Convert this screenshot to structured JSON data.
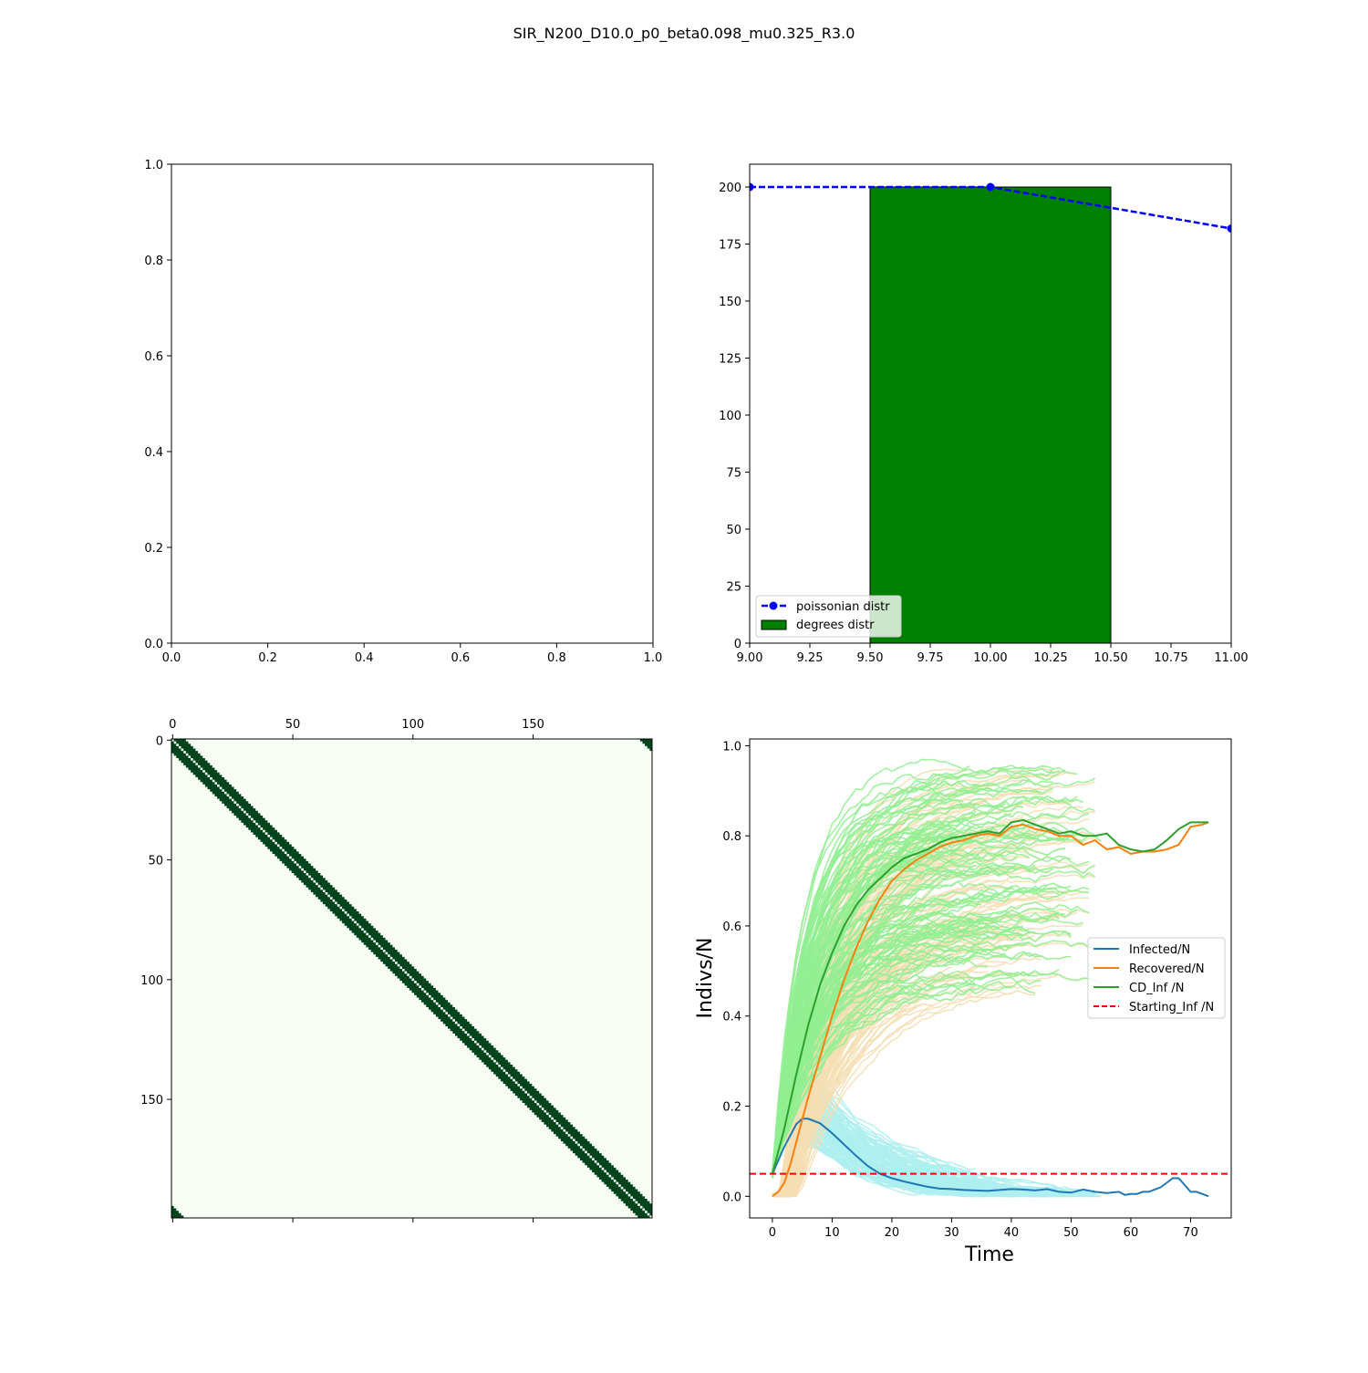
{
  "figure": {
    "title": "SIR_N200_D10.0_p0_beta0.098_mu0.325_R3.0"
  },
  "chart_data": [
    {
      "id": "empty-axes",
      "type": "scatter",
      "title": "",
      "xlabel": "",
      "ylabel": "",
      "xlim": [
        0,
        1
      ],
      "ylim": [
        0,
        1
      ],
      "xticks": [
        "0.0",
        "0.2",
        "0.4",
        "0.6",
        "0.8",
        "1.0"
      ],
      "yticks": [
        "0.0",
        "0.2",
        "0.4",
        "0.6",
        "0.8",
        "1.0"
      ],
      "series": []
    },
    {
      "id": "degree-distribution",
      "type": "bar",
      "title": "",
      "xlabel": "",
      "ylabel": "",
      "xlim": [
        9.0,
        11.0
      ],
      "ylim": [
        0,
        210
      ],
      "xticks": [
        "9.00",
        "9.25",
        "9.50",
        "9.75",
        "10.00",
        "10.25",
        "10.50",
        "10.75",
        "11.00"
      ],
      "yticks": [
        "0",
        "25",
        "50",
        "75",
        "100",
        "125",
        "150",
        "175",
        "200"
      ],
      "bars": [
        {
          "x0": 9.5,
          "x1": 10.5,
          "value": 200,
          "color": "#008000"
        }
      ],
      "line": {
        "name": "poissonian distr",
        "color": "#0000ff",
        "style": "dashed-with-markers",
        "x": [
          9,
          10,
          11
        ],
        "y": [
          200,
          200,
          181.8
        ]
      },
      "legend": {
        "position": "lower-left",
        "entries": [
          {
            "label": "poissonian distr",
            "kind": "line",
            "color": "#0000ff"
          },
          {
            "label": "degrees distr",
            "kind": "patch",
            "color": "#008000"
          }
        ]
      }
    },
    {
      "id": "adjacency-matrix",
      "type": "heatmap",
      "title": "",
      "n": 200,
      "band_offsets": [
        1,
        2,
        3,
        4,
        5
      ],
      "periodic": true,
      "colors": {
        "off": "#f7fcf5",
        "on": "#00441b"
      },
      "xticks": [
        "0",
        "50",
        "100",
        "150"
      ],
      "yticks": [
        "0",
        "50",
        "100",
        "150"
      ],
      "tick_values": [
        0,
        50,
        100,
        150
      ]
    },
    {
      "id": "sir-time-series",
      "type": "line",
      "title": "",
      "xlabel": "Time",
      "ylabel": "Indivs/N",
      "xlim": [
        -3.8,
        76.8
      ],
      "ylim": [
        -0.048,
        1.015
      ],
      "xticks": [
        "0",
        "10",
        "20",
        "30",
        "40",
        "50",
        "60",
        "70"
      ],
      "yticks": [
        "0.0",
        "0.2",
        "0.4",
        "0.6",
        "0.8",
        "1.0"
      ],
      "starting_inf": 0.05,
      "series": [
        {
          "name": "Infected/N",
          "color": "#1f77b4",
          "x": [
            0,
            2,
            4,
            5,
            6,
            8,
            10,
            12,
            14,
            16,
            18,
            20,
            22,
            24,
            26,
            28,
            30,
            32,
            34,
            36,
            38,
            40,
            42,
            44,
            46,
            48,
            50,
            52,
            54,
            56,
            58,
            59,
            60,
            61,
            62,
            63,
            64,
            65,
            66,
            67,
            68,
            69,
            70,
            71,
            72,
            73
          ],
          "y": [
            0.05,
            0.11,
            0.16,
            0.172,
            0.172,
            0.162,
            0.14,
            0.115,
            0.09,
            0.067,
            0.05,
            0.04,
            0.033,
            0.027,
            0.021,
            0.017,
            0.016,
            0.014,
            0.013,
            0.012,
            0.014,
            0.016,
            0.015,
            0.013,
            0.016,
            0.01,
            0.008,
            0.015,
            0.01,
            0.007,
            0.01,
            0.003,
            0.005,
            0.005,
            0.01,
            0.01,
            0.015,
            0.02,
            0.03,
            0.04,
            0.04,
            0.025,
            0.01,
            0.01,
            0.005,
            0.0
          ]
        },
        {
          "name": "Recovered/N",
          "color": "#ff7f0e",
          "x": [
            0,
            1,
            2,
            3,
            4,
            5,
            6,
            8,
            10,
            12,
            14,
            16,
            18,
            20,
            22,
            24,
            26,
            28,
            30,
            32,
            34,
            36,
            38,
            40,
            42,
            44,
            46,
            48,
            50,
            52,
            54,
            56,
            58,
            60,
            62,
            64,
            66,
            68,
            70,
            72,
            73
          ],
          "y": [
            0.0,
            0.01,
            0.03,
            0.07,
            0.12,
            0.17,
            0.22,
            0.31,
            0.4,
            0.48,
            0.55,
            0.61,
            0.66,
            0.7,
            0.725,
            0.745,
            0.76,
            0.775,
            0.785,
            0.79,
            0.8,
            0.805,
            0.8,
            0.82,
            0.825,
            0.815,
            0.81,
            0.8,
            0.8,
            0.78,
            0.79,
            0.77,
            0.775,
            0.76,
            0.765,
            0.765,
            0.77,
            0.78,
            0.82,
            0.825,
            0.83
          ]
        },
        {
          "name": "CD_Inf /N",
          "color": "#2ca02c",
          "x": [
            0,
            2,
            4,
            6,
            8,
            10,
            12,
            14,
            16,
            18,
            20,
            22,
            24,
            26,
            28,
            30,
            32,
            34,
            36,
            38,
            40,
            42,
            44,
            46,
            48,
            50,
            52,
            54,
            56,
            58,
            60,
            62,
            64,
            66,
            68,
            70,
            72,
            73
          ],
          "y": [
            0.05,
            0.15,
            0.27,
            0.38,
            0.47,
            0.54,
            0.6,
            0.645,
            0.68,
            0.705,
            0.73,
            0.75,
            0.76,
            0.77,
            0.785,
            0.795,
            0.8,
            0.805,
            0.81,
            0.805,
            0.83,
            0.835,
            0.825,
            0.815,
            0.805,
            0.81,
            0.8,
            0.8,
            0.805,
            0.78,
            0.77,
            0.765,
            0.77,
            0.79,
            0.815,
            0.83,
            0.83,
            0.83
          ]
        },
        {
          "name": "Starting_Inf /N",
          "color": "#ff0000",
          "style": "dashed",
          "y": 0.05
        }
      ],
      "ensemble": {
        "runs": 120,
        "colors": {
          "infected": "#aeeeee",
          "recovered": "#f5deb3",
          "cd_inf": "#90ee90"
        }
      },
      "legend": {
        "position": "center-right",
        "entries": [
          {
            "label": "Infected/N",
            "color": "#1f77b4",
            "kind": "line"
          },
          {
            "label": "Recovered/N",
            "color": "#ff7f0e",
            "kind": "line"
          },
          {
            "label": "CD_Inf /N",
            "color": "#2ca02c",
            "kind": "line"
          },
          {
            "label": "Starting_Inf /N",
            "color": "#ff0000",
            "kind": "dashed"
          }
        ]
      }
    }
  ]
}
